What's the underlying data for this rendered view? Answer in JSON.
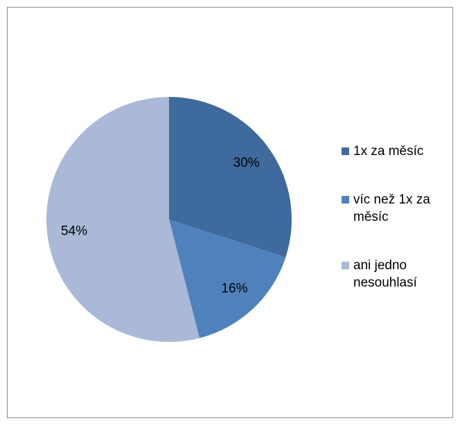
{
  "chart_data": {
    "type": "pie",
    "categories": [
      "1x za měsíc",
      "víc než 1x za měsíc",
      "ani jedno nesouhlasí"
    ],
    "values": [
      30,
      16,
      54
    ],
    "value_labels": [
      "30%",
      "16%",
      "54%"
    ],
    "colors": [
      "#3e6a9d",
      "#4f81bd",
      "#a9b9d7"
    ],
    "legend": "right"
  }
}
